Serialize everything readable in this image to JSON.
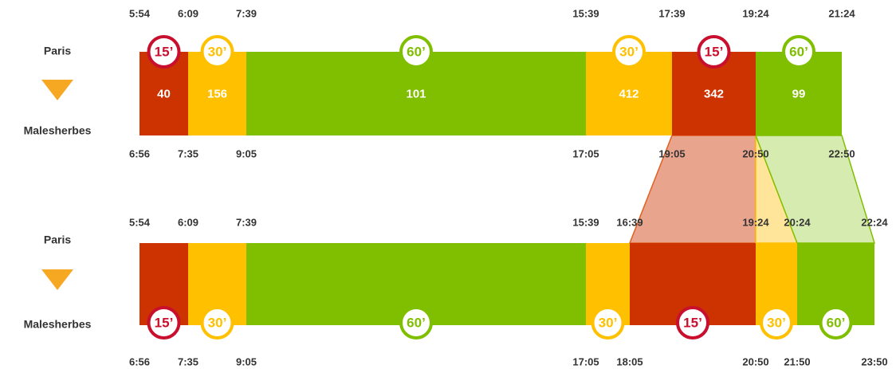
{
  "timelines": [
    {
      "stations": [
        "Paris",
        "Malesherbes"
      ],
      "departures": [
        "5:54",
        "6:09",
        "7:39",
        "15:39",
        "17:39",
        "19:24",
        "21:24"
      ],
      "arrivals": [
        "6:56",
        "7:35",
        "9:05",
        "17:05",
        "19:05",
        "20:50",
        "22:50"
      ],
      "segments": [
        {
          "frequency": "15’",
          "count": "40",
          "color": "#cc3300"
        },
        {
          "frequency": "30’",
          "count": "156",
          "color": "#ffc000"
        },
        {
          "frequency": "60’",
          "count": "101",
          "color": "#80bf00"
        },
        {
          "frequency": "30’",
          "count": "412",
          "color": "#ffc000"
        },
        {
          "frequency": "15’",
          "count": "342",
          "color": "#cc3300"
        },
        {
          "frequency": "60’",
          "count": "99",
          "color": "#80bf00"
        }
      ]
    },
    {
      "stations": [
        "Paris",
        "Malesherbes"
      ],
      "departures": [
        "5:54",
        "6:09",
        "7:39",
        "15:39",
        "16:39",
        "19:24",
        "20:24",
        "22:24"
      ],
      "arrivals": [
        "6:56",
        "7:35",
        "9:05",
        "17:05",
        "18:05",
        "20:50",
        "21:50",
        "23:50"
      ],
      "segments": [
        {
          "frequency": "15’",
          "color": "#cc3300"
        },
        {
          "frequency": "30’",
          "color": "#ffc000"
        },
        {
          "frequency": "60’",
          "color": "#80bf00"
        },
        {
          "frequency": "30’",
          "color": "#ffc000"
        },
        {
          "frequency": "15’",
          "color": "#cc3300"
        },
        {
          "frequency": "30’",
          "color": "#ffc000"
        },
        {
          "frequency": "60’",
          "color": "#80bf00"
        }
      ]
    }
  ]
}
